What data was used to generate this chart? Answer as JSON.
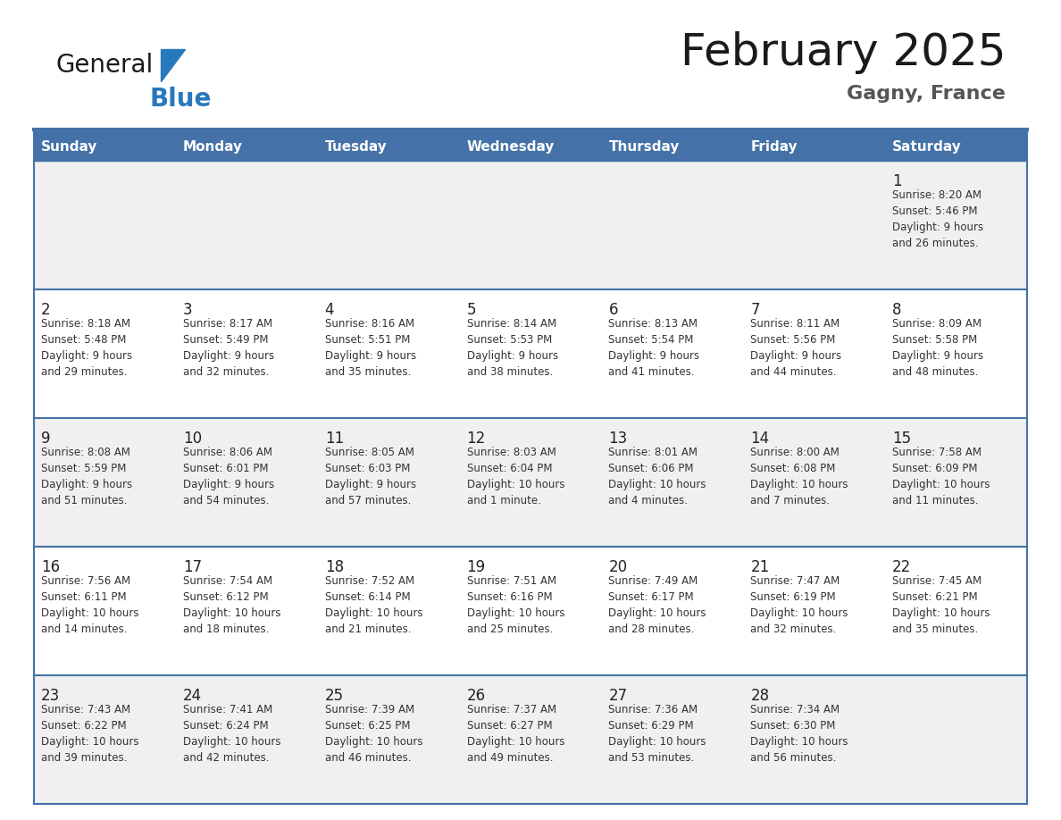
{
  "title": "February 2025",
  "subtitle": "Gagny, France",
  "days_of_week": [
    "Sunday",
    "Monday",
    "Tuesday",
    "Wednesday",
    "Thursday",
    "Friday",
    "Saturday"
  ],
  "header_bg": "#4472A8",
  "header_text": "#FFFFFF",
  "row_bg_odd": "#F0F0F0",
  "row_bg_even": "#FFFFFF",
  "cell_text_color": "#333333",
  "day_num_color": "#222222",
  "border_color": "#4472A8",
  "border_light": "#AAAAAA",
  "title_color": "#1a1a1a",
  "subtitle_color": "#555555",
  "logo_general_color": "#1a1a1a",
  "logo_blue_color": "#2878BE",
  "week_data": [
    {
      "days": [
        null,
        null,
        null,
        null,
        null,
        null,
        1
      ],
      "info": [
        null,
        null,
        null,
        null,
        null,
        null,
        "Sunrise: 8:20 AM\nSunset: 5:46 PM\nDaylight: 9 hours\nand 26 minutes."
      ]
    },
    {
      "days": [
        2,
        3,
        4,
        5,
        6,
        7,
        8
      ],
      "info": [
        "Sunrise: 8:18 AM\nSunset: 5:48 PM\nDaylight: 9 hours\nand 29 minutes.",
        "Sunrise: 8:17 AM\nSunset: 5:49 PM\nDaylight: 9 hours\nand 32 minutes.",
        "Sunrise: 8:16 AM\nSunset: 5:51 PM\nDaylight: 9 hours\nand 35 minutes.",
        "Sunrise: 8:14 AM\nSunset: 5:53 PM\nDaylight: 9 hours\nand 38 minutes.",
        "Sunrise: 8:13 AM\nSunset: 5:54 PM\nDaylight: 9 hours\nand 41 minutes.",
        "Sunrise: 8:11 AM\nSunset: 5:56 PM\nDaylight: 9 hours\nand 44 minutes.",
        "Sunrise: 8:09 AM\nSunset: 5:58 PM\nDaylight: 9 hours\nand 48 minutes."
      ]
    },
    {
      "days": [
        9,
        10,
        11,
        12,
        13,
        14,
        15
      ],
      "info": [
        "Sunrise: 8:08 AM\nSunset: 5:59 PM\nDaylight: 9 hours\nand 51 minutes.",
        "Sunrise: 8:06 AM\nSunset: 6:01 PM\nDaylight: 9 hours\nand 54 minutes.",
        "Sunrise: 8:05 AM\nSunset: 6:03 PM\nDaylight: 9 hours\nand 57 minutes.",
        "Sunrise: 8:03 AM\nSunset: 6:04 PM\nDaylight: 10 hours\nand 1 minute.",
        "Sunrise: 8:01 AM\nSunset: 6:06 PM\nDaylight: 10 hours\nand 4 minutes.",
        "Sunrise: 8:00 AM\nSunset: 6:08 PM\nDaylight: 10 hours\nand 7 minutes.",
        "Sunrise: 7:58 AM\nSunset: 6:09 PM\nDaylight: 10 hours\nand 11 minutes."
      ]
    },
    {
      "days": [
        16,
        17,
        18,
        19,
        20,
        21,
        22
      ],
      "info": [
        "Sunrise: 7:56 AM\nSunset: 6:11 PM\nDaylight: 10 hours\nand 14 minutes.",
        "Sunrise: 7:54 AM\nSunset: 6:12 PM\nDaylight: 10 hours\nand 18 minutes.",
        "Sunrise: 7:52 AM\nSunset: 6:14 PM\nDaylight: 10 hours\nand 21 minutes.",
        "Sunrise: 7:51 AM\nSunset: 6:16 PM\nDaylight: 10 hours\nand 25 minutes.",
        "Sunrise: 7:49 AM\nSunset: 6:17 PM\nDaylight: 10 hours\nand 28 minutes.",
        "Sunrise: 7:47 AM\nSunset: 6:19 PM\nDaylight: 10 hours\nand 32 minutes.",
        "Sunrise: 7:45 AM\nSunset: 6:21 PM\nDaylight: 10 hours\nand 35 minutes."
      ]
    },
    {
      "days": [
        23,
        24,
        25,
        26,
        27,
        28,
        null
      ],
      "info": [
        "Sunrise: 7:43 AM\nSunset: 6:22 PM\nDaylight: 10 hours\nand 39 minutes.",
        "Sunrise: 7:41 AM\nSunset: 6:24 PM\nDaylight: 10 hours\nand 42 minutes.",
        "Sunrise: 7:39 AM\nSunset: 6:25 PM\nDaylight: 10 hours\nand 46 minutes.",
        "Sunrise: 7:37 AM\nSunset: 6:27 PM\nDaylight: 10 hours\nand 49 minutes.",
        "Sunrise: 7:36 AM\nSunset: 6:29 PM\nDaylight: 10 hours\nand 53 minutes.",
        "Sunrise: 7:34 AM\nSunset: 6:30 PM\nDaylight: 10 hours\nand 56 minutes.",
        null
      ]
    }
  ]
}
